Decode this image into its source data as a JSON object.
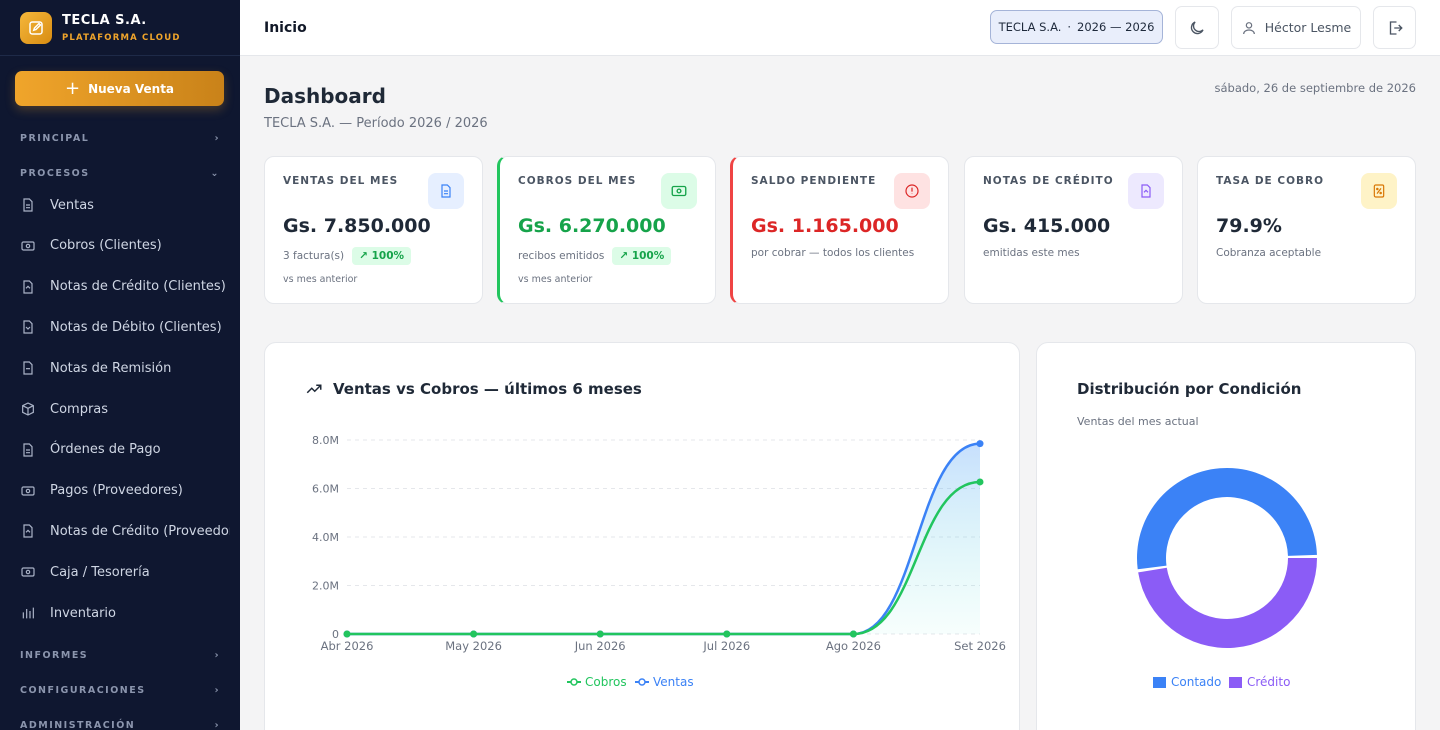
{
  "brand": {
    "name": "TECLA S.A.",
    "subtitle": "PLATAFORMA CLOUD"
  },
  "sidebar": {
    "new_sale_label": "Nueva Venta",
    "sections": {
      "principal": "PRINCIPAL",
      "procesos": "PROCESOS",
      "informes": "INFORMES",
      "configuraciones": "CONFIGURACIONES",
      "administracion": "ADMINISTRACIÓN"
    },
    "items": [
      {
        "label": "Ventas",
        "icon": "document-icon"
      },
      {
        "label": "Cobros (Clientes)",
        "icon": "banknote-icon"
      },
      {
        "label": "Notas de Crédito (Clientes)",
        "icon": "credit-note-icon"
      },
      {
        "label": "Notas de Débito (Clientes)",
        "icon": "debit-note-icon"
      },
      {
        "label": "Notas de Remisión",
        "icon": "remission-icon"
      },
      {
        "label": "Compras",
        "icon": "box-icon"
      },
      {
        "label": "Órdenes de Pago",
        "icon": "document-icon"
      },
      {
        "label": "Pagos (Proveedores)",
        "icon": "banknote-icon"
      },
      {
        "label": "Notas de Crédito (Proveedores)",
        "icon": "credit-note-icon"
      },
      {
        "label": "Caja / Tesorería",
        "icon": "cash-register-icon"
      },
      {
        "label": "Inventario",
        "icon": "bar-chart-icon"
      }
    ]
  },
  "topbar": {
    "title": "Inicio",
    "company": "TECLA S.A.",
    "period": "2026 — 2026",
    "user": "Héctor Lesme"
  },
  "page": {
    "title": "Dashboard",
    "subtitle": "TECLA S.A. — Período 2026 / 2026",
    "date": "sábado, 26 de septiembre de 2026"
  },
  "cards": [
    {
      "label": "VENTAS DEL MES",
      "value": "Gs. 7.850.000",
      "desc": "3 factura(s)",
      "badge": "100%",
      "foot": "vs mes anterior",
      "color": "#1f2937",
      "icon": "document-icon"
    },
    {
      "label": "COBROS DEL MES",
      "value": "Gs. 6.270.000",
      "desc": "recibos emitidos",
      "badge": "100%",
      "foot": "vs mes anterior",
      "color": "#16a34a",
      "icon": "banknote-icon"
    },
    {
      "label": "SALDO PENDIENTE",
      "value": "Gs. 1.165.000",
      "desc": "por cobrar — todos los clientes",
      "color": "#dc2626",
      "icon": "alert-circle-icon"
    },
    {
      "label": "NOTAS DE CRÉDITO",
      "value": "Gs. 415.000",
      "desc": "emitidas este mes",
      "color": "#1f2937",
      "icon": "credit-note-icon"
    },
    {
      "label": "TASA DE COBRO",
      "value": "79.9%",
      "desc": "Cobranza aceptable",
      "color": "#1f2937",
      "icon": "percent-doc-icon"
    }
  ],
  "line_panel": {
    "title": "Ventas vs Cobros — últimos 6 meses"
  },
  "donut_panel": {
    "title": "Distribución por Condición",
    "subtitle": "Ventas del mes actual"
  },
  "chart_data": [
    {
      "type": "line",
      "title": "Ventas vs Cobros — últimos 6 meses",
      "categories": [
        "Abr 2026",
        "May 2026",
        "Jun 2026",
        "Jul 2026",
        "Ago 2026",
        "Set 2026"
      ],
      "yticks": [
        "0",
        "2.0M",
        "4.0M",
        "6.0M",
        "8.0M"
      ],
      "ylim": [
        0,
        8000000
      ],
      "series": [
        {
          "name": "Cobros",
          "color": "#22c55e",
          "values": [
            0,
            0,
            0,
            0,
            0,
            6270000
          ]
        },
        {
          "name": "Ventas",
          "color": "#3b82f6",
          "values": [
            0,
            0,
            0,
            0,
            0,
            7850000
          ]
        }
      ],
      "grid": true,
      "legend": "bottom"
    },
    {
      "type": "pie",
      "title": "Distribución por Condición",
      "categories": [
        "Contado",
        "Crédito"
      ],
      "values": [
        52,
        48
      ],
      "colors": [
        "#3b82f6",
        "#8b5cf6"
      ],
      "legend": "bottom"
    }
  ]
}
